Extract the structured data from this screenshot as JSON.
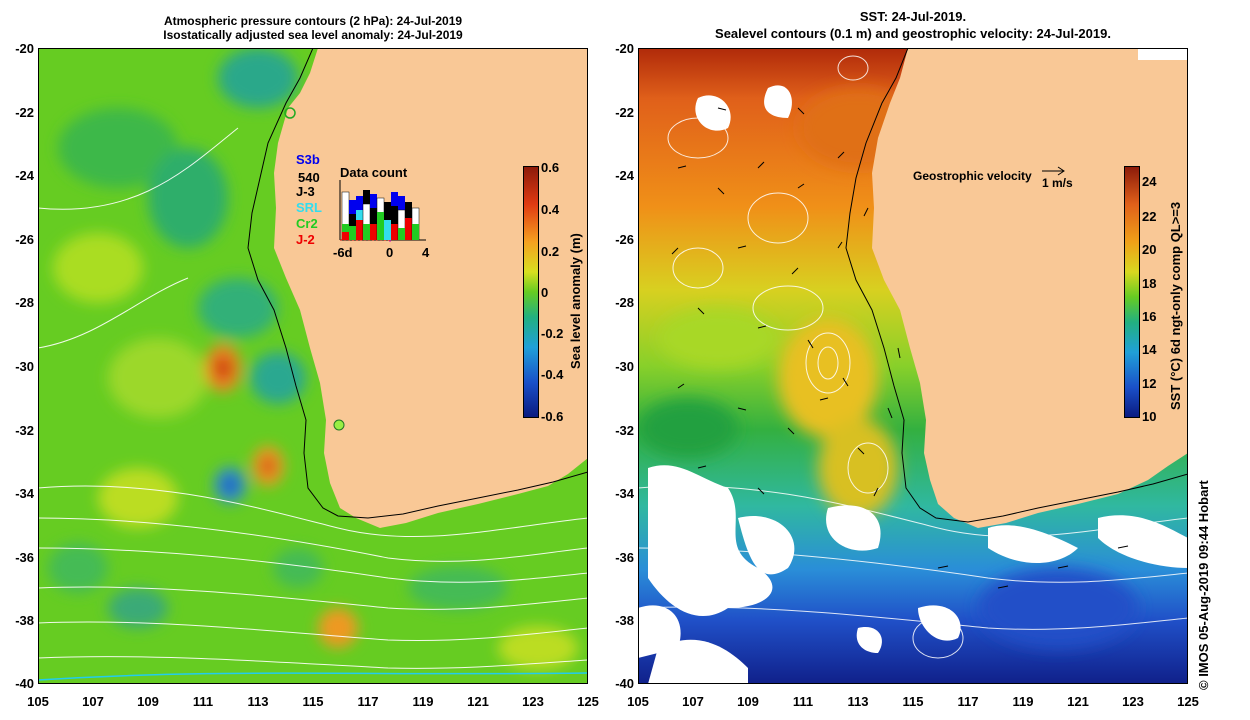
{
  "left_panel": {
    "title_line1": "Atmospheric pressure contours (2 hPa): 24-Jul-2019",
    "title_line2": "Isostatically adjusted sea level anomaly: 24-Jul-2019",
    "colorbar": {
      "label": "Sea level anomaly (m)",
      "ticks": [
        "0.6",
        "0.4",
        "0.2",
        "0",
        "-0.2",
        "-0.4",
        "-0.6"
      ]
    },
    "data_count": {
      "title": "Data count",
      "x_ticks": [
        "-6d",
        "0",
        "4"
      ],
      "missions": [
        {
          "label": "S3b",
          "color": "#0000ee"
        },
        {
          "label": "540",
          "color": "#000000"
        },
        {
          "label": "J-3",
          "color": "#000000"
        },
        {
          "label": "SRL",
          "color": "#33ddee"
        },
        {
          "label": "Cr2",
          "color": "#22cc22"
        },
        {
          "label": "J-2",
          "color": "#ee0000"
        }
      ]
    }
  },
  "right_panel": {
    "title_line1": "SST: 24-Jul-2019.",
    "title_line2": "Sealevel contours (0.1 m) and geostrophic velocity: 24-Jul-2019.",
    "velocity_key": {
      "label": "Geostrophic velocity",
      "unit": "1 m/s"
    },
    "colorbar": {
      "label": "SST (°C) 6d ngt-only comp QL>=3",
      "ticks": [
        "24",
        "22",
        "20",
        "18",
        "16",
        "14",
        "12",
        "10"
      ]
    }
  },
  "y_ticks": [
    "-20",
    "-22",
    "-24",
    "-26",
    "-28",
    "-30",
    "-32",
    "-34",
    "-36",
    "-38",
    "-40"
  ],
  "x_ticks": [
    "105",
    "107",
    "109",
    "111",
    "113",
    "115",
    "117",
    "119",
    "121",
    "123",
    "125"
  ],
  "credit": "© IMOS 05-Aug-2019 09:44 Hobart",
  "colors": {
    "land": "#f9c896",
    "ocean_green": "#66cc22",
    "sst_warm": "#e07010",
    "sst_cold": "#102090"
  }
}
